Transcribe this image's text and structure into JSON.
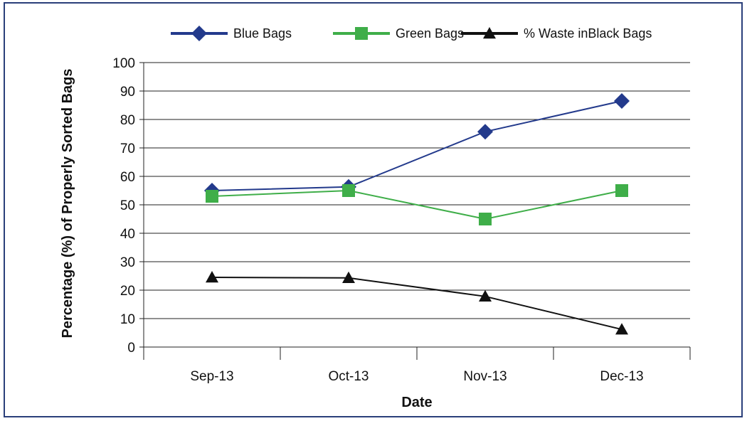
{
  "chart_data": {
    "type": "line",
    "categories": [
      "Sep-13",
      "Oct-13",
      "Nov-13",
      "Dec-13"
    ],
    "series": [
      {
        "name": "Blue Bags",
        "values": [
          55,
          56.3,
          75.7,
          86.5
        ],
        "color": "#233a8c",
        "marker": "diamond"
      },
      {
        "name": "Green Bags",
        "values": [
          53,
          55,
          45,
          55
        ],
        "color": "#3fae49",
        "marker": "square"
      },
      {
        "name": "% Waste inBlack Bags",
        "values": [
          24.5,
          24.3,
          17.8,
          6.2
        ],
        "color": "#111111",
        "marker": "triangle"
      }
    ],
    "xlabel": "Date",
    "ylabel": "Percentage (%) of Properly Sorted Bags",
    "ylim": [
      0,
      100
    ],
    "yticks": [
      0,
      10,
      20,
      30,
      40,
      50,
      60,
      70,
      80,
      90,
      100
    ],
    "grid": true,
    "legend": "top"
  }
}
